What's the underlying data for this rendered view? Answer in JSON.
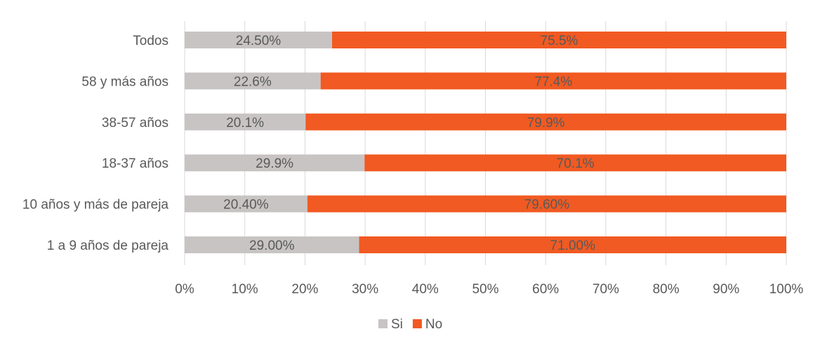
{
  "chart_data": {
    "type": "bar",
    "orientation": "horizontal",
    "stacked": true,
    "categories": [
      "Todos",
      "58 y más años",
      "38-57 años",
      "18-37 años",
      "10 años y más de pareja",
      "1 a 9 años de pareja"
    ],
    "series": [
      {
        "name": "Si",
        "color": "#c8c4c4",
        "values": [
          24.5,
          22.6,
          20.1,
          29.9,
          20.4,
          29.0
        ],
        "labels": [
          "24.50%",
          "22.6%",
          "20.1%",
          "29.9%",
          "20.40%",
          "29.00%"
        ]
      },
      {
        "name": "No",
        "color": "#f15a22",
        "values": [
          75.5,
          77.4,
          79.9,
          70.1,
          79.6,
          71.0
        ],
        "labels": [
          "75.5%",
          "77.4%",
          "79.9%",
          "70.1%",
          "79.60%",
          "71.00%"
        ]
      }
    ],
    "xlim": [
      0,
      100
    ],
    "xticks": [
      "0%",
      "10%",
      "20%",
      "30%",
      "40%",
      "50%",
      "60%",
      "70%",
      "80%",
      "90%",
      "100%"
    ],
    "grid": true,
    "legend": "bottom",
    "label_color": "#595959"
  }
}
